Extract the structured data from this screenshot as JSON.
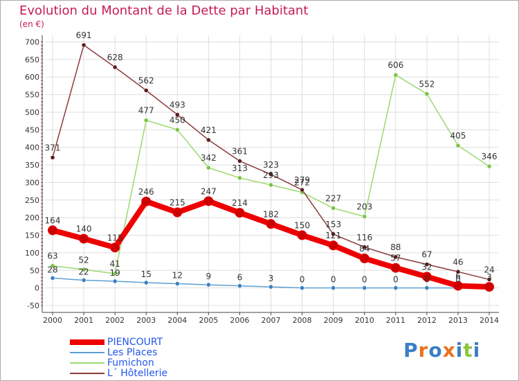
{
  "title": "Evolution du Montant de la Dette par Habitant",
  "subtitle": "(en €)",
  "logo": {
    "text": "Proxiti",
    "letters": [
      "P",
      "r",
      "o",
      "x",
      "i",
      "t",
      "i"
    ],
    "colors": [
      "#3b7fc4",
      "#e8731e",
      "#3b7fc4",
      "#e8731e",
      "#3b7fc4",
      "#8cc63f",
      "#3b7fc4"
    ]
  },
  "chart_data": {
    "type": "line",
    "x": [
      "2000",
      "2001",
      "2002",
      "2003",
      "2004",
      "2005",
      "2006",
      "2007",
      "2008",
      "2009",
      "2010",
      "2011",
      "2012",
      "2013",
      "2014"
    ],
    "ylim": [
      -50,
      700
    ],
    "yticks": [
      "-50",
      "0",
      "50",
      "100",
      "150",
      "200",
      "250",
      "300",
      "350",
      "400",
      "450",
      "500",
      "550",
      "600",
      "650",
      "700"
    ],
    "grid": true,
    "legend_position": "bottom-left",
    "series": [
      {
        "name": "PIENCOURT",
        "color": "#ee0000",
        "values": [
          164,
          140,
          115,
          246,
          215,
          247,
          214,
          182,
          150,
          121,
          84,
          57,
          32,
          6,
          3
        ],
        "labels": [
          "164",
          "140",
          "115",
          "246",
          "215",
          "247",
          "214",
          "182",
          "150",
          "121",
          "84",
          "57",
          "32",
          "6",
          "3"
        ]
      },
      {
        "name": "Les Places",
        "color": "#5d9fd1",
        "values": [
          28,
          22,
          19,
          15,
          12,
          9,
          6,
          3,
          0,
          0,
          0,
          0,
          0,
          0,
          0
        ],
        "labels": [
          "28",
          "22",
          "19",
          "15",
          "12",
          "9",
          "6",
          "3",
          "0",
          "0",
          "0",
          "0",
          "0",
          "0",
          ""
        ]
      },
      {
        "name": "Fumichon",
        "color": "#9bd96e",
        "values": [
          63,
          52,
          41,
          477,
          450,
          342,
          313,
          293,
          272,
          227,
          203,
          606,
          552,
          405,
          346
        ],
        "labels": [
          "63",
          "52",
          "41",
          "477",
          "450",
          "342",
          "313",
          "293",
          "272",
          "227",
          "203",
          "606",
          "552",
          "405",
          "346"
        ]
      },
      {
        "name": "L´ Hôtellerie",
        "color": "#8b3a3a",
        "values": [
          371,
          691,
          628,
          562,
          493,
          421,
          361,
          323,
          279,
          153,
          116,
          88,
          67,
          46,
          24
        ],
        "labels": [
          "371",
          "691",
          "628",
          "562",
          "493",
          "421",
          "361",
          "323",
          "279",
          "153",
          "116",
          "88",
          "67",
          "46",
          "24"
        ]
      }
    ]
  }
}
